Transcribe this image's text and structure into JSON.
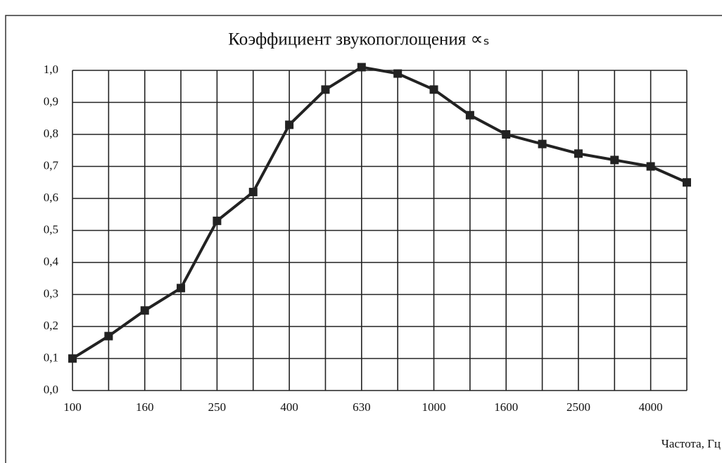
{
  "chart_data": {
    "type": "line",
    "title": "Коэффициент звукопоглощения ∝ₛ",
    "x_label": "Частота, Гц",
    "categories": [
      "100",
      null,
      "160",
      null,
      "250",
      null,
      "400",
      null,
      "630",
      null,
      "1000",
      null,
      "1600",
      null,
      "2500",
      null,
      "4000",
      null
    ],
    "series": [
      {
        "name": "Коэффициент звукопоглощения",
        "color": "#222222",
        "values": [
          0.1,
          0.17,
          0.25,
          0.32,
          0.53,
          0.62,
          0.83,
          0.94,
          1.01,
          0.99,
          0.94,
          0.86,
          0.8,
          0.77,
          0.74,
          0.72,
          0.7,
          0.65
        ]
      }
    ],
    "ylim": [
      0,
      1.0
    ],
    "yticks": [
      {
        "value": 0,
        "label": "0,0"
      },
      {
        "value": 0.1,
        "label": "0,1"
      },
      {
        "value": 0.2,
        "label": "0,2"
      },
      {
        "value": 0.3,
        "label": "0,3"
      },
      {
        "value": 0.4,
        "label": "0,4"
      },
      {
        "value": 0.5,
        "label": "0,5"
      },
      {
        "value": 0.6,
        "label": "0,6"
      },
      {
        "value": 0.7,
        "label": "0,7"
      },
      {
        "value": 0.8,
        "label": "0,8"
      },
      {
        "value": 0.9,
        "label": "0,9"
      },
      {
        "value": 1.0,
        "label": "1,0"
      }
    ],
    "grid": true
  }
}
